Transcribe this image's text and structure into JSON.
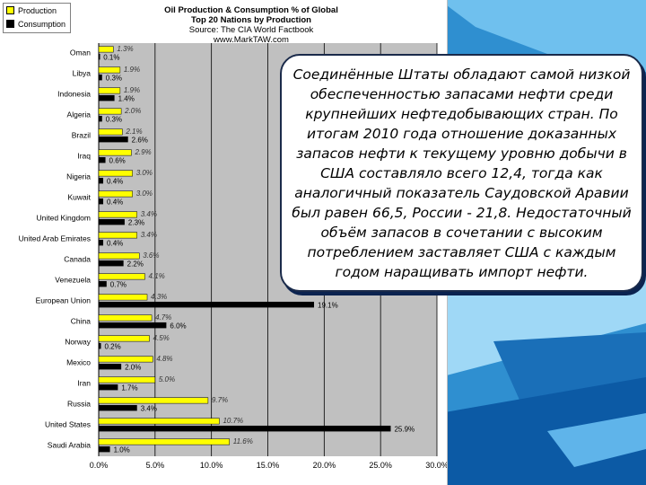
{
  "legend": {
    "production": "Production",
    "consumption": "Consumption"
  },
  "title": {
    "line1": "Oil Production & Consumption % of Global",
    "line2": "Top 20 Nations by Production",
    "line3": "Source: The CIA World Factbook",
    "line4": "www.MarkTAW.com"
  },
  "callout": {
    "text": "Соединённые Штаты обладают самой низкой обеспеченностью запасами нефти среди крупнейших нефтедобывающих стран. По итогам 2010 года отношение доказанных запасов нефти к текущему уровню добычи в США составляло всего 12,4, тогда как аналогичный показатель Саудовской Аравии был равен 66,5, России - 21,8. Недостаточный объём запасов в сочетании с высоким потреблением заставляет США с каждым годом наращивать импорт нефти."
  },
  "colors": {
    "production": "#ffff00",
    "consumption": "#000000",
    "plot_bg": "#c0c0c0",
    "callout_border": "#1a2a4a",
    "background_blue": "#2f8fd0"
  },
  "chart_data": {
    "type": "bar",
    "orientation": "horizontal",
    "categories": [
      "Oman",
      "Libya",
      "Indonesia",
      "Algeria",
      "Brazil",
      "Iraq",
      "Nigeria",
      "Kuwait",
      "United Kingdom",
      "United Arab Emirates",
      "Canada",
      "Venezuela",
      "European Union",
      "China",
      "Norway",
      "Mexico",
      "Iran",
      "Russia",
      "United States",
      "Saudi Arabia"
    ],
    "series": [
      {
        "name": "Production",
        "values": [
          1.3,
          1.9,
          1.9,
          2.0,
          2.1,
          2.9,
          3.0,
          3.0,
          3.4,
          3.4,
          3.6,
          4.1,
          4.3,
          4.7,
          4.5,
          4.8,
          5.0,
          9.7,
          10.7,
          11.6
        ],
        "labels": [
          "1.3%",
          "1.9%",
          "1.9%",
          "2.0%",
          "2.1%",
          "2.9%",
          "3.0%",
          "3.0%",
          "3.4%",
          "3.4%",
          "3.6%",
          "4.1%",
          "4.3%",
          "4.7%",
          "4.5%",
          "4.8%",
          "5.0%",
          "9.7%",
          "10.7%",
          "11.6%"
        ]
      },
      {
        "name": "Consumption",
        "values": [
          0.1,
          0.3,
          1.4,
          0.3,
          2.6,
          0.6,
          0.4,
          0.4,
          2.3,
          0.4,
          2.2,
          0.7,
          19.1,
          6.0,
          0.2,
          2.0,
          1.7,
          3.4,
          25.9,
          1.0
        ],
        "labels": [
          "0.1%",
          "0.3%",
          "1.4%",
          "0.3%",
          "2.6%",
          "0.6%",
          "0.4%",
          "0.4%",
          "2.3%",
          "0.4%",
          "2.2%",
          "0.7%",
          "19.1%",
          "6.0%",
          "0.2%",
          "2.0%",
          "1.7%",
          "3.4%",
          "25.9%",
          "1.0%"
        ]
      }
    ],
    "xlim": [
      0,
      30
    ],
    "x_ticks": [
      "0.0%",
      "5.0%",
      "10.0%",
      "15.0%",
      "20.0%",
      "25.0%",
      "30.0%"
    ],
    "grid": true,
    "legend_position": "top-left"
  }
}
